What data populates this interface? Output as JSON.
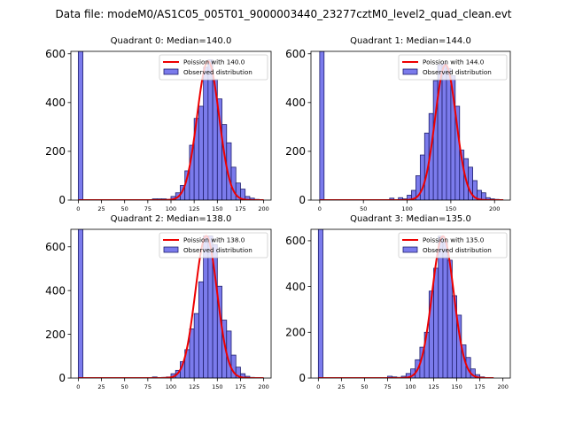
{
  "figure_title": "Data file: modeM0/AS1C05_005T01_9000003440_23277cztM0_level2_quad_clean.evt",
  "colors": {
    "hist_fill": "#7b7bec",
    "hist_edge": "#1f1f6e",
    "curve": "#ee0000"
  },
  "chart_data": [
    {
      "type": "bar",
      "title": "Quadrant 0: Median=140.0",
      "median": 140.0,
      "xlim": [
        -8,
        208
      ],
      "ylim": [
        0,
        610
      ],
      "xticks": [
        0,
        25,
        50,
        75,
        100,
        125,
        150,
        175,
        200
      ],
      "yticks": [
        0,
        200,
        400,
        600
      ],
      "bin_width": 5,
      "bins": [
        {
          "x": 0,
          "count": 610
        },
        {
          "x": 80,
          "count": 5
        },
        {
          "x": 85,
          "count": 5
        },
        {
          "x": 90,
          "count": 5
        },
        {
          "x": 95,
          "count": 3
        },
        {
          "x": 100,
          "count": 15
        },
        {
          "x": 105,
          "count": 30
        },
        {
          "x": 110,
          "count": 60
        },
        {
          "x": 115,
          "count": 120
        },
        {
          "x": 120,
          "count": 225
        },
        {
          "x": 125,
          "count": 335
        },
        {
          "x": 130,
          "count": 385
        },
        {
          "x": 135,
          "count": 545
        },
        {
          "x": 140,
          "count": 575
        },
        {
          "x": 145,
          "count": 495
        },
        {
          "x": 150,
          "count": 415
        },
        {
          "x": 155,
          "count": 310
        },
        {
          "x": 160,
          "count": 235
        },
        {
          "x": 165,
          "count": 135
        },
        {
          "x": 170,
          "count": 70
        },
        {
          "x": 175,
          "count": 45
        },
        {
          "x": 180,
          "count": 15
        },
        {
          "x": 185,
          "count": 8
        },
        {
          "x": 190,
          "count": 3
        }
      ],
      "curve": {
        "mean": 140.0,
        "peak": 570,
        "x_range": [
          0,
          200
        ]
      },
      "legend": [
        "Poission with 140.0",
        "Observed distribution"
      ]
    },
    {
      "type": "bar",
      "title": "Quadrant 1: Median=144.0",
      "median": 144.0,
      "xlim": [
        -10,
        218
      ],
      "ylim": [
        0,
        610
      ],
      "xticks": [
        0,
        50,
        100,
        150,
        200
      ],
      "yticks": [
        0,
        200,
        400,
        600
      ],
      "bin_width": 5,
      "bins": [
        {
          "x": 0,
          "count": 610
        },
        {
          "x": 80,
          "count": 8
        },
        {
          "x": 90,
          "count": 10
        },
        {
          "x": 95,
          "count": 5
        },
        {
          "x": 100,
          "count": 20
        },
        {
          "x": 105,
          "count": 40
        },
        {
          "x": 110,
          "count": 100
        },
        {
          "x": 115,
          "count": 185
        },
        {
          "x": 120,
          "count": 275
        },
        {
          "x": 125,
          "count": 355
        },
        {
          "x": 130,
          "count": 490
        },
        {
          "x": 135,
          "count": 555
        },
        {
          "x": 140,
          "count": 560
        },
        {
          "x": 145,
          "count": 540
        },
        {
          "x": 150,
          "count": 510
        },
        {
          "x": 155,
          "count": 385
        },
        {
          "x": 160,
          "count": 205
        },
        {
          "x": 165,
          "count": 170
        },
        {
          "x": 170,
          "count": 135
        },
        {
          "x": 175,
          "count": 80
        },
        {
          "x": 180,
          "count": 40
        },
        {
          "x": 185,
          "count": 30
        },
        {
          "x": 190,
          "count": 10
        },
        {
          "x": 195,
          "count": 5
        },
        {
          "x": 200,
          "count": 3
        }
      ],
      "curve": {
        "mean": 144.0,
        "peak": 555,
        "x_range": [
          0,
          210
        ]
      },
      "legend": [
        "Poission with 144.0",
        "Observed distribution"
      ]
    },
    {
      "type": "bar",
      "title": "Quadrant 2: Median=138.0",
      "median": 138.0,
      "xlim": [
        -8,
        208
      ],
      "ylim": [
        0,
        680
      ],
      "xticks": [
        0,
        25,
        50,
        75,
        100,
        125,
        150,
        175,
        200
      ],
      "yticks": [
        0,
        200,
        400,
        600
      ],
      "bin_width": 5,
      "bins": [
        {
          "x": 0,
          "count": 680
        },
        {
          "x": 80,
          "count": 5
        },
        {
          "x": 90,
          "count": 3
        },
        {
          "x": 95,
          "count": 5
        },
        {
          "x": 100,
          "count": 20
        },
        {
          "x": 105,
          "count": 35
        },
        {
          "x": 110,
          "count": 75
        },
        {
          "x": 115,
          "count": 130
        },
        {
          "x": 120,
          "count": 225
        },
        {
          "x": 125,
          "count": 295
        },
        {
          "x": 130,
          "count": 440
        },
        {
          "x": 135,
          "count": 650
        },
        {
          "x": 140,
          "count": 650
        },
        {
          "x": 145,
          "count": 610
        },
        {
          "x": 150,
          "count": 420
        },
        {
          "x": 155,
          "count": 265
        },
        {
          "x": 160,
          "count": 215
        },
        {
          "x": 165,
          "count": 105
        },
        {
          "x": 170,
          "count": 50
        },
        {
          "x": 175,
          "count": 20
        },
        {
          "x": 180,
          "count": 8
        },
        {
          "x": 185,
          "count": 3
        }
      ],
      "curve": {
        "mean": 138.0,
        "peak": 650,
        "x_range": [
          0,
          200
        ]
      },
      "legend": [
        "Poission with 138.0",
        "Observed distribution"
      ]
    },
    {
      "type": "bar",
      "title": "Quadrant 3: Median=135.0",
      "median": 135.0,
      "xlim": [
        -8,
        208
      ],
      "ylim": [
        0,
        650
      ],
      "xticks": [
        0,
        25,
        50,
        75,
        100,
        125,
        150,
        175,
        200
      ],
      "yticks": [
        0,
        200,
        400,
        600
      ],
      "bin_width": 5,
      "bins": [
        {
          "x": 0,
          "count": 650
        },
        {
          "x": 75,
          "count": 8
        },
        {
          "x": 80,
          "count": 5
        },
        {
          "x": 85,
          "count": 3
        },
        {
          "x": 90,
          "count": 8
        },
        {
          "x": 95,
          "count": 20
        },
        {
          "x": 100,
          "count": 40
        },
        {
          "x": 105,
          "count": 80
        },
        {
          "x": 110,
          "count": 135
        },
        {
          "x": 115,
          "count": 200
        },
        {
          "x": 120,
          "count": 380
        },
        {
          "x": 125,
          "count": 480
        },
        {
          "x": 130,
          "count": 620
        },
        {
          "x": 135,
          "count": 595
        },
        {
          "x": 140,
          "count": 515
        },
        {
          "x": 145,
          "count": 360
        },
        {
          "x": 150,
          "count": 275
        },
        {
          "x": 155,
          "count": 145
        },
        {
          "x": 160,
          "count": 90
        },
        {
          "x": 165,
          "count": 40
        },
        {
          "x": 170,
          "count": 15
        },
        {
          "x": 175,
          "count": 5
        }
      ],
      "curve": {
        "mean": 135.0,
        "peak": 620,
        "x_range": [
          0,
          190
        ]
      },
      "legend": [
        "Poission with 135.0",
        "Observed distribution"
      ]
    }
  ]
}
